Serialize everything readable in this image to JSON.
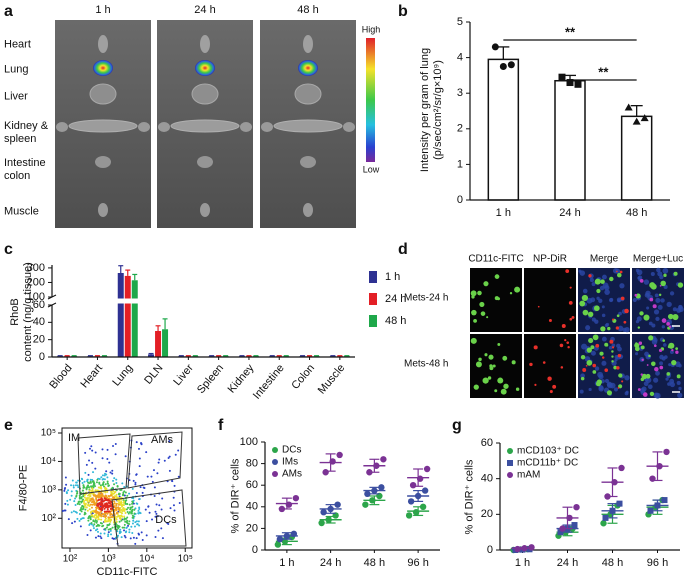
{
  "panel_labels": [
    "a",
    "b",
    "c",
    "d",
    "e",
    "f",
    "g"
  ],
  "imaging": {
    "timepoints": [
      "1 h",
      "24 h",
      "48 h"
    ],
    "organs": [
      "Heart",
      "Lung",
      "Liver",
      "Kidney &\nspleen",
      "Intestine\ncolon",
      "Muscle"
    ],
    "scale": {
      "high": "High",
      "low": "Low"
    }
  },
  "microscopy": {
    "columns": [
      "CD11c-FITC",
      "NP-DiR",
      "Merge",
      "Merge+Luc"
    ],
    "rows": [
      "Mets-24 h",
      "Mets-48 h"
    ]
  },
  "flow": {
    "xlabel": "CD11c-FITC",
    "ylabel": "F4/80-PE",
    "gates": [
      "IM",
      "AMs",
      "DCs"
    ],
    "log_scale": true,
    "xlim": [
      62,
      150000
    ],
    "ylim": [
      9,
      150000
    ],
    "xticks": [
      {
        "value": 100,
        "label": "10²"
      },
      {
        "value": 1000,
        "label": "10³"
      },
      {
        "value": 10000,
        "label": "10⁴"
      },
      {
        "value": 100000,
        "label": "10⁵"
      }
    ],
    "yticks": [
      {
        "value": 100,
        "label": "10²"
      },
      {
        "value": 1000,
        "label": "10³"
      },
      {
        "value": 10000,
        "label": "10⁴"
      },
      {
        "value": 100000,
        "label": "10⁵"
      }
    ]
  },
  "chart_data": [
    {
      "type": "bar",
      "categories": [
        "1 h",
        "24 h",
        "48 h"
      ],
      "values": [
        3.95,
        3.35,
        2.35
      ],
      "errors": [
        0.35,
        0.15,
        0.3
      ],
      "points": [
        [
          4.3,
          3.75,
          3.8
        ],
        [
          3.45,
          3.3,
          3.25
        ],
        [
          2.6,
          2.2,
          2.3
        ]
      ],
      "color": "#ffffff",
      "ylim": [
        0,
        5
      ],
      "yticks": [
        0,
        1,
        2,
        3,
        4,
        5
      ],
      "ylabel": "Intensity per gram of lung\n(p/sec/cm²/sr/g×10⁹)",
      "annotations": [
        "**",
        "**"
      ]
    },
    {
      "type": "grouped_bar",
      "categories": [
        "Blood",
        "Heart",
        "Lung",
        "DLN",
        "Liver",
        "Spleen",
        "Kidney",
        "Intestine",
        "Colon",
        "Muscle"
      ],
      "series": [
        {
          "name": "1 h",
          "color": "#2e3192",
          "values": [
            1,
            1,
            265,
            3,
            1,
            1,
            1,
            1,
            1,
            1
          ],
          "errors": [
            0.5,
            0.5,
            50,
            1,
            0.5,
            0.5,
            0.5,
            0.5,
            0.5,
            0.5
          ]
        },
        {
          "name": "24 h",
          "color": "#e31f26",
          "values": [
            1,
            1,
            245,
            30,
            1,
            1,
            1,
            1,
            1,
            1
          ],
          "errors": [
            0.5,
            0.5,
            40,
            6,
            0.5,
            0.5,
            0.5,
            0.5,
            0.5,
            0.5
          ]
        },
        {
          "name": "48 h",
          "color": "#1ea84a",
          "values": [
            1,
            1,
            215,
            32,
            1,
            1,
            1,
            1,
            1,
            1
          ],
          "errors": [
            0.5,
            0.5,
            40,
            12,
            0.5,
            0.5,
            0.5,
            0.5,
            0.5,
            0.5
          ]
        }
      ],
      "ylim": [
        0,
        320
      ],
      "ybreak": [
        60,
        100
      ],
      "yticks": [
        0,
        20,
        40,
        60,
        100,
        200,
        300
      ],
      "ylabel": "RhoB\ncontent (ng/g tissue)",
      "legend": "right"
    },
    {
      "type": "dot_plot",
      "categories": [
        "1 h",
        "24 h",
        "48 h",
        "96 h"
      ],
      "series": [
        {
          "name": "DCs",
          "color": "#2ca54a",
          "marker": "circle",
          "values": [
            8,
            28,
            46,
            36
          ],
          "errors": [
            3,
            3,
            4,
            4
          ],
          "points": [
            [
              5,
              8,
              12
            ],
            [
              25,
              28,
              32
            ],
            [
              42,
              46,
              50
            ],
            [
              32,
              35,
              40
            ]
          ]
        },
        {
          "name": "IMs",
          "color": "#3c4fa0",
          "marker": "circle",
          "values": [
            13,
            38,
            55,
            50
          ],
          "errors": [
            3,
            4,
            3,
            5
          ],
          "points": [
            [
              10,
              13,
              15
            ],
            [
              35,
              38,
              42
            ],
            [
              52,
              55,
              58
            ],
            [
              45,
              50,
              55
            ]
          ]
        },
        {
          "name": "AMs",
          "color": "#7b3294",
          "marker": "circle",
          "values": [
            43,
            81,
            78,
            67
          ],
          "errors": [
            5,
            8,
            6,
            8
          ],
          "points": [
            [
              38,
              42,
              48
            ],
            [
              72,
              82,
              88
            ],
            [
              72,
              78,
              84
            ],
            [
              60,
              66,
              75
            ]
          ]
        }
      ],
      "ylim": [
        0,
        100
      ],
      "yticks": [
        0,
        20,
        40,
        60,
        80,
        100
      ],
      "ylabel": "% of DIR⁺ cells",
      "legend": "upper left"
    },
    {
      "type": "dot_plot",
      "categories": [
        "1 h",
        "24 h",
        "48 h",
        "96 h"
      ],
      "series": [
        {
          "name": "mCD103⁺ DC",
          "color": "#2ca54a",
          "marker": "circle",
          "values": [
            0.3,
            10,
            20,
            24
          ],
          "errors": [
            0.3,
            2,
            5,
            4
          ],
          "points": [
            [
              0,
              0.3,
              0.5
            ],
            [
              8,
              10,
              12
            ],
            [
              15,
              20,
              25
            ],
            [
              20,
              24,
              28
            ]
          ]
        },
        {
          "name": "mCD11b⁺ DC",
          "color": "#3c4fa0",
          "marker": "square",
          "values": [
            0.2,
            12,
            22,
            25
          ],
          "errors": [
            0.2,
            2,
            4,
            3
          ],
          "points": [
            [
              0,
              0.2,
              0.4
            ],
            [
              10,
              12,
              14
            ],
            [
              18,
              22,
              26
            ],
            [
              22,
              25,
              28
            ]
          ]
        },
        {
          "name": "mAM",
          "color": "#7b3294",
          "marker": "circle",
          "values": [
            1,
            18,
            38,
            47
          ],
          "errors": [
            0.5,
            6,
            8,
            8
          ],
          "points": [
            [
              0.5,
              1,
              1.5
            ],
            [
              12,
              18,
              24
            ],
            [
              30,
              38,
              46
            ],
            [
              40,
              47,
              55
            ]
          ]
        }
      ],
      "ylim": [
        0,
        60
      ],
      "yticks": [
        0,
        20,
        40,
        60
      ],
      "ylabel": "% of DIR⁺ cells",
      "legend": "upper left"
    }
  ]
}
